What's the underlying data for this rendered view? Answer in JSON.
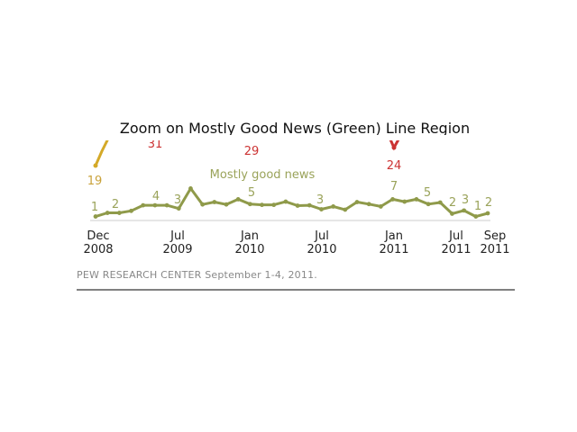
{
  "chart_data": {
    "type": "line",
    "title": "Zoom on Mostly Good News (Green) Line Region",
    "xlabel": "",
    "ylabel": "",
    "ylim": [
      0,
      11
    ],
    "x_ticks": [
      {
        "top": "Dec",
        "bottom": "2008"
      },
      {
        "top": "Jul",
        "bottom": "2009"
      },
      {
        "top": "Jan",
        "bottom": "2010"
      },
      {
        "top": "Jul",
        "bottom": "2010"
      },
      {
        "top": "Jan",
        "bottom": "2011"
      },
      {
        "top": "Jul",
        "bottom": "2011"
      },
      {
        "top": "Sep",
        "bottom": "2011"
      }
    ],
    "series": [
      {
        "name": "Mostly good news",
        "color": "#8f9a4a",
        "values": [
          1,
          1.9,
          1.9,
          2.4,
          3.8,
          3.8,
          3.8,
          3,
          8,
          4,
          4.6,
          4,
          5.3,
          4.1,
          3.9,
          3.9,
          4.7,
          3.7,
          3.8,
          2.8,
          3.5,
          2.7,
          4.6,
          4.1,
          3.5,
          5.3,
          4.7,
          5.3,
          4.1,
          4.5,
          1.7,
          2.5,
          1,
          1.8
        ],
        "labels": [
          "1",
          "2",
          "4",
          "3",
          "5",
          "3",
          "7",
          "5",
          "2",
          "3",
          "1",
          "2"
        ]
      },
      {
        "color": "#d4a928",
        "labels": [
          "19"
        ]
      },
      {
        "color": "#cc3333",
        "labels": [
          "31",
          "29",
          "24"
        ]
      }
    ],
    "grid": false
  },
  "source": "PEW RESEARCH  CENTER September 1-4, 2011."
}
